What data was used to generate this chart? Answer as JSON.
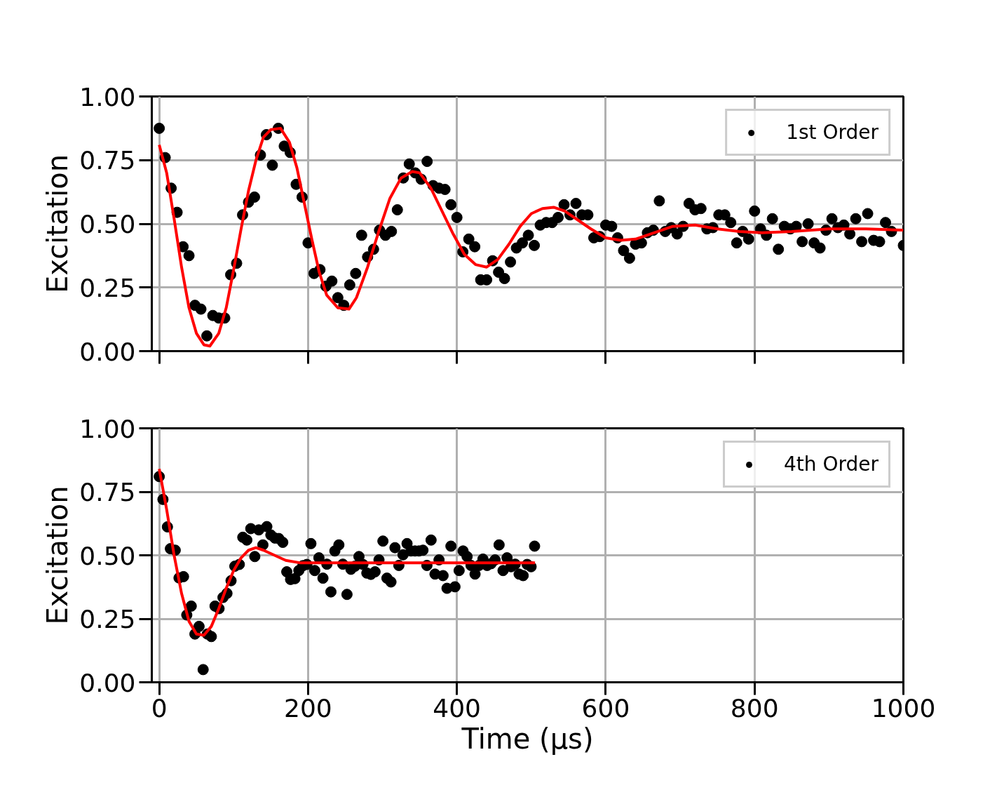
{
  "chart_data": [
    {
      "type": "scatter",
      "ylabel": "Excitation",
      "xlim": [
        -10,
        1000
      ],
      "xticks": [
        0,
        200,
        400,
        600,
        800,
        1000
      ],
      "ylim": [
        0,
        1
      ],
      "yticks": [
        {
          "value": 0,
          "label": "0.00"
        },
        {
          "value": 0.25,
          "label": "0.25"
        },
        {
          "value": 0.5,
          "label": "0.50"
        },
        {
          "value": 0.75,
          "label": "0.75"
        },
        {
          "value": 1,
          "label": "1.00"
        }
      ],
      "tick_labels": "y",
      "grid": true,
      "legend": "top right",
      "series": [
        {
          "name": "1st Order",
          "color": "#000000",
          "marker": "circle",
          "x": [
            0,
            8,
            16,
            24,
            32,
            40,
            48,
            56,
            64,
            72,
            80,
            88,
            96,
            104,
            112,
            120,
            128,
            136,
            144,
            152,
            160,
            168,
            176,
            184,
            192,
            200,
            208,
            216,
            224,
            232,
            240,
            248,
            256,
            264,
            272,
            280,
            288,
            296,
            304,
            312,
            320,
            328,
            336,
            344,
            352,
            360,
            368,
            376,
            384,
            392,
            400,
            408,
            416,
            424,
            432,
            440,
            448,
            456,
            464,
            472,
            480,
            488,
            496,
            504,
            512,
            520,
            528,
            536,
            544,
            552,
            560,
            568,
            576,
            584,
            592,
            600,
            608,
            616,
            624,
            632,
            640,
            648,
            656,
            664,
            672,
            680,
            688,
            696,
            704,
            712,
            720,
            728,
            736,
            744,
            752,
            760,
            768,
            776,
            784,
            792,
            800,
            808,
            816,
            824,
            832,
            840,
            848,
            856,
            864,
            872,
            880,
            888,
            896,
            904,
            912,
            920,
            928,
            936,
            944,
            952,
            960,
            968,
            976,
            984,
            1000
          ],
          "values": [
            0.875,
            0.76,
            0.64,
            0.545,
            0.41,
            0.375,
            0.18,
            0.165,
            0.06,
            0.14,
            0.13,
            0.13,
            0.3,
            0.345,
            0.535,
            0.585,
            0.605,
            0.77,
            0.85,
            0.73,
            0.875,
            0.805,
            0.78,
            0.655,
            0.605,
            0.425,
            0.305,
            0.32,
            0.255,
            0.275,
            0.21,
            0.18,
            0.26,
            0.305,
            0.455,
            0.37,
            0.4,
            0.475,
            0.455,
            0.47,
            0.555,
            0.68,
            0.735,
            0.7,
            0.675,
            0.745,
            0.65,
            0.64,
            0.635,
            0.575,
            0.525,
            0.39,
            0.44,
            0.41,
            0.28,
            0.28,
            0.355,
            0.31,
            0.285,
            0.35,
            0.405,
            0.425,
            0.455,
            0.415,
            0.495,
            0.505,
            0.505,
            0.525,
            0.575,
            0.535,
            0.58,
            0.535,
            0.535,
            0.445,
            0.45,
            0.495,
            0.49,
            0.445,
            0.395,
            0.365,
            0.42,
            0.425,
            0.465,
            0.475,
            0.59,
            0.47,
            0.485,
            0.46,
            0.49,
            0.58,
            0.555,
            0.56,
            0.48,
            0.485,
            0.535,
            0.535,
            0.505,
            0.425,
            0.47,
            0.44,
            0.55,
            0.48,
            0.455,
            0.52,
            0.4,
            0.49,
            0.48,
            0.49,
            0.43,
            0.5,
            0.425,
            0.405,
            0.475,
            0.52,
            0.485,
            0.495,
            0.46,
            0.52,
            0.43,
            0.54,
            0.435,
            0.43,
            0.505,
            0.47,
            0.415
          ]
        },
        {
          "type": "line",
          "color": "#ff0000",
          "x": [
            0,
            10,
            20,
            30,
            40,
            50,
            60,
            68,
            80,
            90,
            100,
            110,
            120,
            130,
            140,
            150,
            163,
            175,
            185,
            195,
            205,
            215,
            225,
            240,
            255,
            265,
            280,
            295,
            310,
            325,
            340,
            350,
            365,
            380,
            395,
            410,
            425,
            440,
            455,
            470,
            485,
            500,
            515,
            530,
            545,
            560,
            580,
            600,
            620,
            640,
            660,
            690,
            720,
            750,
            780,
            810,
            850,
            900,
            950,
            1000
          ],
          "values": [
            0.81,
            0.7,
            0.52,
            0.33,
            0.17,
            0.07,
            0.025,
            0.02,
            0.07,
            0.17,
            0.32,
            0.48,
            0.63,
            0.75,
            0.84,
            0.87,
            0.875,
            0.82,
            0.72,
            0.58,
            0.44,
            0.31,
            0.22,
            0.17,
            0.165,
            0.21,
            0.33,
            0.47,
            0.6,
            0.68,
            0.705,
            0.7,
            0.64,
            0.55,
            0.46,
            0.38,
            0.34,
            0.33,
            0.36,
            0.42,
            0.49,
            0.54,
            0.56,
            0.565,
            0.55,
            0.52,
            0.48,
            0.445,
            0.435,
            0.44,
            0.46,
            0.49,
            0.495,
            0.48,
            0.47,
            0.465,
            0.47,
            0.48,
            0.48,
            0.475
          ]
        }
      ]
    },
    {
      "type": "scatter",
      "xlabel": "Time (μs)",
      "ylabel": "Excitation",
      "xlim": [
        -10,
        1000
      ],
      "xticks": [
        0,
        200,
        400,
        600,
        800,
        1000
      ],
      "ylim": [
        0,
        1
      ],
      "yticks": [
        {
          "value": 0,
          "label": "0.00"
        },
        {
          "value": 0.25,
          "label": "0.25"
        },
        {
          "value": 0.5,
          "label": "0.50"
        },
        {
          "value": 0.75,
          "label": "0.75"
        },
        {
          "value": 1,
          "label": "1.00"
        }
      ],
      "grid": true,
      "legend": "top right",
      "series": [
        {
          "name": "4th Order",
          "color": "#000000",
          "marker": "circle",
          "x": [
            0,
            5,
            11,
            15,
            21.5,
            26.6,
            32.6,
            37,
            43,
            48,
            53.5,
            59,
            64.6,
            70,
            75,
            80.4,
            85.7,
            91,
            96.5,
            101.6,
            107.6,
            112.3,
            117.7,
            123,
            128.4,
            133.8,
            139.3,
            144.6,
            150,
            155.4,
            160.7,
            166,
            171.4,
            176.5,
            182.3,
            187.6,
            193,
            198.4,
            203.8,
            209,
            214.6,
            220,
            225.3,
            230.7,
            236,
            241.4,
            246.7,
            252.3,
            257.6,
            263,
            268.4,
            273.7,
            279,
            284.4,
            290,
            295.3,
            300.6,
            306,
            311.4,
            316.8,
            322,
            327.6,
            333,
            338.3,
            343.7,
            349,
            354.4,
            359.7,
            365.3,
            370.6,
            376,
            381.4,
            386.7,
            392,
            397.4,
            403,
            408.3,
            413.7,
            419,
            424.4,
            429.7,
            435,
            440.6,
            446,
            451.3,
            456.7,
            462,
            467.4,
            472.7,
            478.3,
            483.6,
            489,
            494.4,
            499.7,
            504.4
          ],
          "values": [
            0.81,
            0.72,
            0.612,
            0.526,
            0.52,
            0.411,
            0.416,
            0.265,
            0.3,
            0.19,
            0.22,
            0.05,
            0.19,
            0.18,
            0.3,
            0.29,
            0.334,
            0.35,
            0.4,
            0.457,
            0.464,
            0.571,
            0.56,
            0.605,
            0.495,
            0.6,
            0.541,
            0.613,
            0.58,
            0.568,
            0.566,
            0.551,
            0.435,
            0.405,
            0.408,
            0.44,
            0.459,
            0.464,
            0.546,
            0.44,
            0.49,
            0.41,
            0.465,
            0.356,
            0.517,
            0.541,
            0.465,
            0.346,
            0.445,
            0.457,
            0.495,
            0.464,
            0.43,
            0.425,
            0.435,
            0.482,
            0.556,
            0.41,
            0.395,
            0.53,
            0.46,
            0.502,
            0.546,
            0.517,
            0.517,
            0.517,
            0.52,
            0.46,
            0.56,
            0.426,
            0.482,
            0.42,
            0.37,
            0.536,
            0.376,
            0.44,
            0.517,
            0.495,
            0.46,
            0.426,
            0.46,
            0.485,
            0.46,
            0.467,
            0.482,
            0.541,
            0.44,
            0.49,
            0.455,
            0.465,
            0.426,
            0.42,
            0.464,
            0.455,
            0.536
          ]
        },
        {
          "type": "line",
          "color": "#ff0000",
          "x": [
            0,
            10,
            20,
            30,
            40,
            50,
            60,
            70,
            80,
            90,
            100,
            110,
            120,
            130,
            140,
            155,
            170,
            190,
            220,
            300,
            400,
            505
          ],
          "values": [
            0.84,
            0.68,
            0.5,
            0.35,
            0.24,
            0.19,
            0.185,
            0.22,
            0.29,
            0.37,
            0.44,
            0.49,
            0.52,
            0.53,
            0.52,
            0.5,
            0.48,
            0.47,
            0.47,
            0.47,
            0.47,
            0.47
          ]
        }
      ]
    }
  ]
}
